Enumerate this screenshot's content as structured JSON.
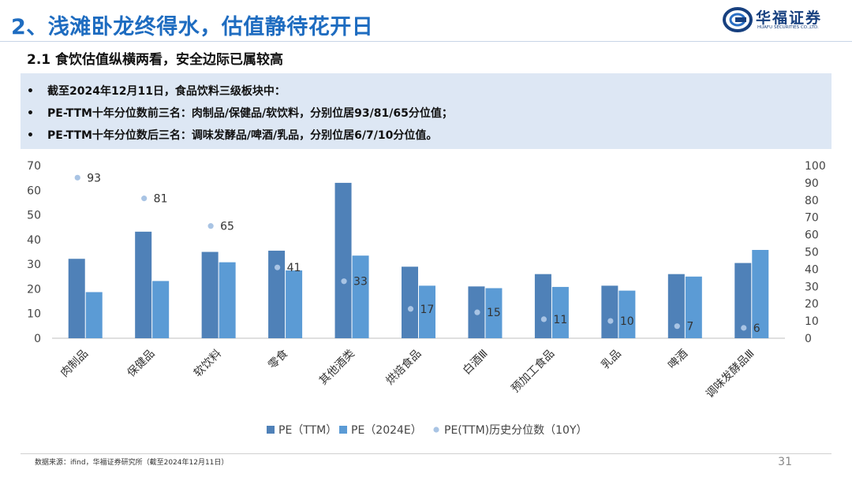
{
  "header": {
    "title": "2、浅滩卧龙终得水，估值静待花开日",
    "subtitle": "2.1 食饮估值纵横两看，安全边际已属较高",
    "logo_name": "华福证券",
    "logo_sub": "HUAFU SECURITIES CO.,LTD."
  },
  "info": {
    "bullet": "•",
    "lines": [
      "截至2024年12月11日，食品饮料三级板块中：",
      "PE-TTM十年分位数前三名：肉制品/保健品/软饮料，分别位居93/81/65分位值；",
      "PE-TTM十年分位数后三名：调味发酵品/啤酒/乳品，分别位居6/7/10分位值。"
    ]
  },
  "chart_data": {
    "type": "bar",
    "categories": [
      "肉制品",
      "保健品",
      "软饮料",
      "零食",
      "其他酒类",
      "烘焙食品",
      "白酒Ⅲ",
      "预加工食品",
      "乳品",
      "啤酒",
      "调味发酵品Ⅲ"
    ],
    "series": [
      {
        "name": "PE（TTM）",
        "type": "bar",
        "axis": "left",
        "color": "#4f81b8",
        "values": [
          32.2,
          43.2,
          35.0,
          35.5,
          63.0,
          29.0,
          21.0,
          26.0,
          21.3,
          26.0,
          30.5
        ]
      },
      {
        "name": "PE（2024E）",
        "type": "bar",
        "axis": "left",
        "color": "#5b9bd5",
        "values": [
          18.7,
          23.2,
          30.8,
          27.5,
          33.5,
          21.3,
          20.3,
          20.8,
          19.3,
          25.0,
          35.8
        ]
      },
      {
        "name": "PE(TTM)历史分位数（10Y）",
        "type": "scatter",
        "axis": "right",
        "color": "#a9c4e4",
        "values": [
          93,
          81,
          65,
          41,
          33,
          17,
          15,
          11,
          10,
          7,
          6
        ]
      }
    ],
    "y_left": {
      "min": 0,
      "max": 70,
      "ticks": [
        0,
        10,
        20,
        30,
        40,
        50,
        60,
        70
      ]
    },
    "y_right": {
      "min": 0,
      "max": 100,
      "ticks": [
        0,
        10,
        20,
        30,
        40,
        50,
        60,
        70,
        80,
        90,
        100
      ]
    },
    "legend_position": "bottom",
    "grid": false
  },
  "footer": {
    "source": "数据来源：ifind，华福证券研究所（截至2024年12月11日）",
    "page": "31"
  }
}
